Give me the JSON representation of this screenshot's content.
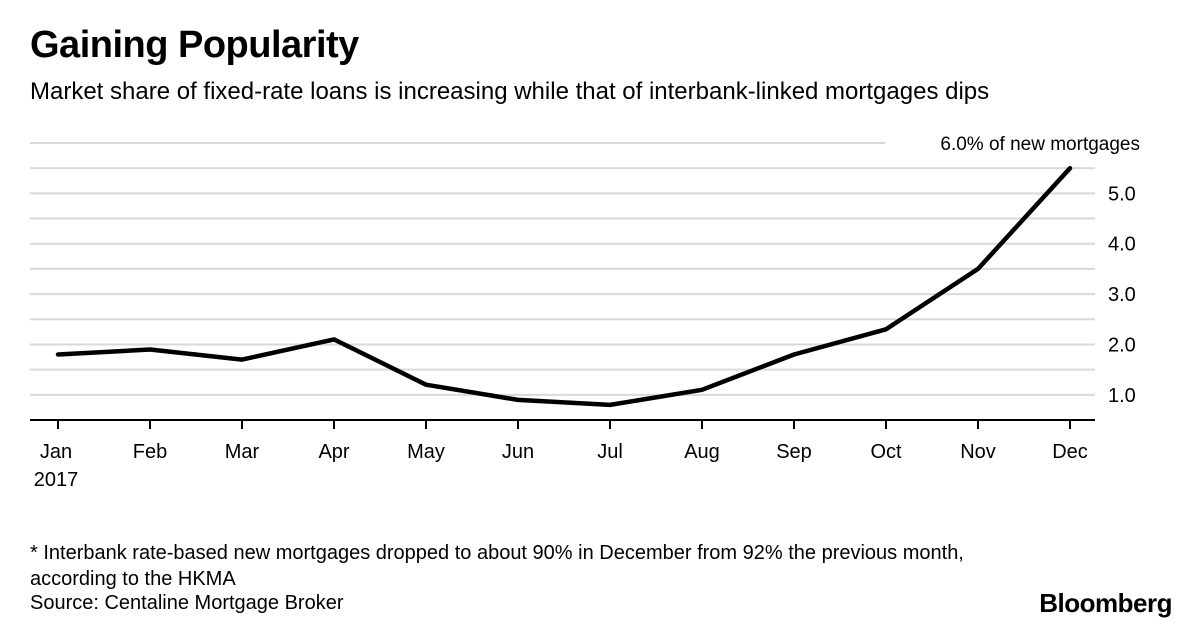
{
  "chart_data": {
    "type": "line",
    "title": "Gaining Popularity",
    "subtitle": "Market share of fixed-rate loans is increasing while that of interbank-linked mortgages dips",
    "categories": [
      "Jan",
      "Feb",
      "Mar",
      "Apr",
      "May",
      "Jun",
      "Jul",
      "Aug",
      "Sep",
      "Oct",
      "Nov",
      "Dec"
    ],
    "year_label": "2017",
    "series": [
      {
        "values": [
          1.8,
          1.9,
          1.7,
          2.1,
          1.2,
          0.9,
          0.8,
          1.1,
          1.8,
          2.3,
          3.5,
          5.5
        ]
      }
    ],
    "y_ticks": [
      {
        "value": 1.0,
        "label": "1.0"
      },
      {
        "value": 2.0,
        "label": "2.0"
      },
      {
        "value": 3.0,
        "label": "3.0"
      },
      {
        "value": 4.0,
        "label": "4.0"
      },
      {
        "value": 5.0,
        "label": "5.0"
      },
      {
        "value": 6.0,
        "label": "6.0% of new mortgages"
      }
    ],
    "ylim": [
      0.5,
      6.0
    ],
    "y_axis_side": "right",
    "grid": true,
    "line_color": "#000000",
    "grid_color": "#d9d9d9"
  },
  "footnote": "* Interbank rate-based new mortgages dropped to about 90% in December from 92% the previous month, according to the HKMA",
  "source": "Source: Centaline Mortgage Broker",
  "brand": "Bloomberg"
}
